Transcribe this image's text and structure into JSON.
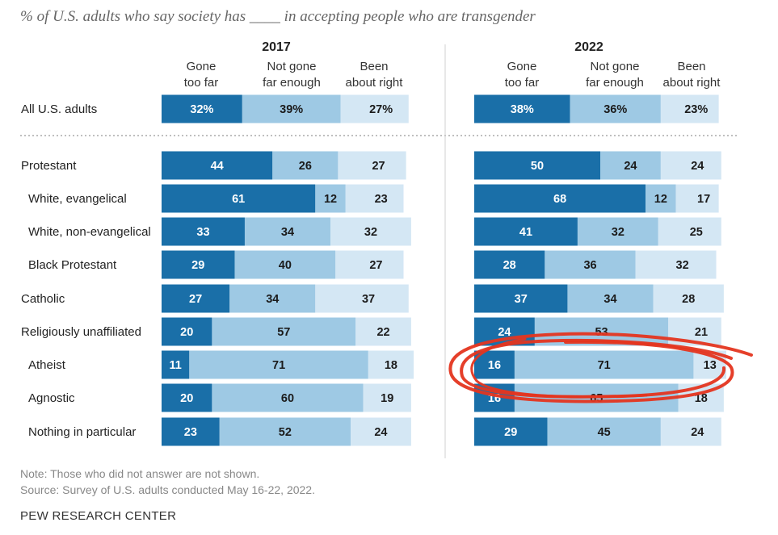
{
  "title": "% of U.S. adults who say society has ____ in accepting people who are transgender",
  "note": "Note: Those who did not answer are not shown.",
  "source": "Source: Survey of U.S. adults conducted May 16-22, 2022.",
  "brand": "PEW RESEARCH CENTER",
  "colors": {
    "gone_too_far": "#1a6fa8",
    "not_gone_far_enough": "#9ec9e4",
    "been_about_right": "#d4e7f4",
    "annotation": "#e4351f"
  },
  "chart_data": {
    "type": "bar",
    "orientation": "horizontal",
    "stacked": true,
    "categories": [
      "All U.S. adults",
      "Protestant",
      "White, evangelical",
      "White, non-evangelical",
      "Black Protestant",
      "Catholic",
      "Religiously unaffiliated",
      "Atheist",
      "Agnostic",
      "Nothing in particular"
    ],
    "series": [
      {
        "name": "Gone too far",
        "label_lines": [
          "Gone",
          "too far"
        ]
      },
      {
        "name": "Not gone far enough",
        "label_lines": [
          "Not gone",
          "far enough"
        ]
      },
      {
        "name": "Been about right",
        "label_lines": [
          "Been",
          "about right"
        ]
      }
    ],
    "panels": [
      {
        "title": "2017",
        "values": [
          [
            32,
            39,
            27
          ],
          [
            44,
            26,
            27
          ],
          [
            61,
            12,
            23
          ],
          [
            33,
            34,
            32
          ],
          [
            29,
            40,
            27
          ],
          [
            27,
            34,
            37
          ],
          [
            20,
            57,
            22
          ],
          [
            11,
            71,
            18
          ],
          [
            20,
            60,
            19
          ],
          [
            23,
            52,
            24
          ]
        ],
        "labels": [
          [
            "32%",
            "39%",
            "27%"
          ],
          [
            "44",
            "26",
            "27"
          ],
          [
            "61",
            "12",
            "23"
          ],
          [
            "33",
            "34",
            "32"
          ],
          [
            "29",
            "40",
            "27"
          ],
          [
            "27",
            "34",
            "37"
          ],
          [
            "20",
            "57",
            "22"
          ],
          [
            "11",
            "71",
            "18"
          ],
          [
            "20",
            "60",
            "19"
          ],
          [
            "23",
            "52",
            "24"
          ]
        ]
      },
      {
        "title": "2022",
        "values": [
          [
            38,
            36,
            23
          ],
          [
            50,
            24,
            24
          ],
          [
            68,
            12,
            17
          ],
          [
            41,
            32,
            25
          ],
          [
            28,
            36,
            32
          ],
          [
            37,
            34,
            28
          ],
          [
            24,
            53,
            21
          ],
          [
            16,
            71,
            13
          ],
          [
            16,
            65,
            18
          ],
          [
            29,
            45,
            24
          ]
        ],
        "labels": [
          [
            "38%",
            "36%",
            "23%"
          ],
          [
            "50",
            "24",
            "24"
          ],
          [
            "68",
            "12",
            "17"
          ],
          [
            "41",
            "32",
            "25"
          ],
          [
            "28",
            "36",
            "32"
          ],
          [
            "37",
            "34",
            "28"
          ],
          [
            "24",
            "53",
            "21"
          ],
          [
            "16",
            "71",
            "13"
          ],
          [
            "16",
            "65",
            "18"
          ],
          [
            "29",
            "45",
            "24"
          ]
        ]
      }
    ],
    "xlim": [
      0,
      100
    ],
    "grid": false,
    "legend": "column headers above each panel",
    "annotation": {
      "type": "hand-drawn circle",
      "panel": "2022",
      "category": "Atheist"
    }
  }
}
